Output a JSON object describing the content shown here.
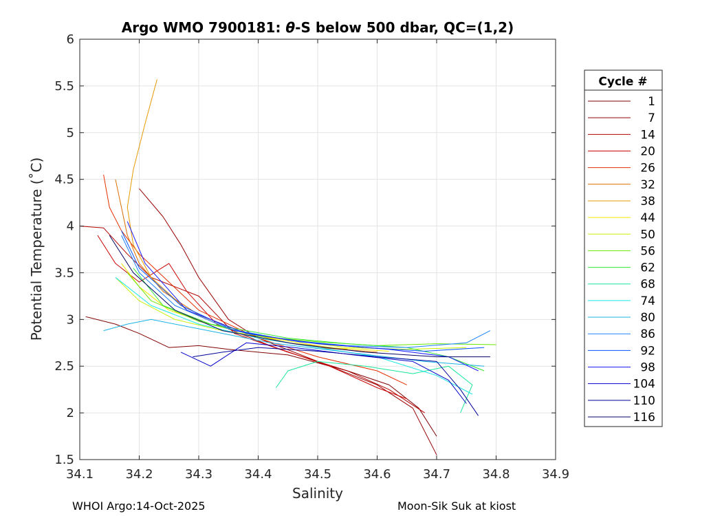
{
  "chart_data": {
    "type": "line",
    "title_prefix": "Argo WMO 7900181: ",
    "title_symbol": "θ",
    "title_suffix": "-S below 500 dbar,  QC=(1,2)",
    "xlabel": "Salinity",
    "ylabel": "Potential Temperature (˚C)",
    "xlim": [
      34.1,
      34.9
    ],
    "ylim": [
      1.5,
      6
    ],
    "xticks": [
      34.1,
      34.2,
      34.3,
      34.4,
      34.5,
      34.6,
      34.7,
      34.8,
      34.9
    ],
    "yticks": [
      1.5,
      2,
      2.5,
      3,
      3.5,
      4,
      4.5,
      5,
      5.5,
      6
    ],
    "xtick_labels": [
      "34.1",
      "34.2",
      "34.3",
      "34.4",
      "34.5",
      "34.6",
      "34.7",
      "34.8",
      "34.9"
    ],
    "ytick_labels": [
      "1.5",
      "2",
      "2.5",
      "3",
      "3.5",
      "4",
      "4.5",
      "5",
      "5.5",
      "6"
    ],
    "grid": true,
    "legend_title": "Cycle #",
    "legend_position": "outside-right",
    "series": [
      {
        "name": "1",
        "color": "#800000",
        "points": [
          [
            34.11,
            3.03
          ],
          [
            34.16,
            2.95
          ],
          [
            34.2,
            2.85
          ],
          [
            34.25,
            2.7
          ],
          [
            34.3,
            2.72
          ],
          [
            34.35,
            2.68
          ],
          [
            34.45,
            2.62
          ],
          [
            34.55,
            2.45
          ],
          [
            34.62,
            2.3
          ],
          [
            34.67,
            2.05
          ],
          [
            34.7,
            1.75
          ]
        ]
      },
      {
        "name": "7",
        "color": "#990000",
        "points": [
          [
            34.2,
            4.4
          ],
          [
            34.24,
            4.1
          ],
          [
            34.27,
            3.8
          ],
          [
            34.3,
            3.45
          ],
          [
            34.35,
            3.0
          ],
          [
            34.4,
            2.8
          ],
          [
            34.5,
            2.55
          ],
          [
            34.6,
            2.3
          ],
          [
            34.66,
            2.05
          ],
          [
            34.7,
            1.55
          ]
        ]
      },
      {
        "name": "14",
        "color": "#b30000",
        "points": [
          [
            34.1,
            4.0
          ],
          [
            34.14,
            3.98
          ],
          [
            34.18,
            3.7
          ],
          [
            34.22,
            3.45
          ],
          [
            34.3,
            3.25
          ],
          [
            34.36,
            2.85
          ],
          [
            34.45,
            2.65
          ],
          [
            34.55,
            2.45
          ],
          [
            34.62,
            2.25
          ],
          [
            34.68,
            2.0
          ]
        ]
      },
      {
        "name": "20",
        "color": "#cc0000",
        "points": [
          [
            34.13,
            3.9
          ],
          [
            34.16,
            3.6
          ],
          [
            34.2,
            3.4
          ],
          [
            34.25,
            3.6
          ],
          [
            34.28,
            3.3
          ],
          [
            34.33,
            2.95
          ],
          [
            34.42,
            2.72
          ],
          [
            34.52,
            2.5
          ],
          [
            34.6,
            2.27
          ],
          [
            34.65,
            2.15
          ]
        ]
      },
      {
        "name": "26",
        "color": "#e62e00",
        "points": [
          [
            34.14,
            4.55
          ],
          [
            34.15,
            4.2
          ],
          [
            34.17,
            3.95
          ],
          [
            34.2,
            3.7
          ],
          [
            34.25,
            3.4
          ],
          [
            34.3,
            3.1
          ],
          [
            34.4,
            2.8
          ],
          [
            34.5,
            2.6
          ],
          [
            34.6,
            2.45
          ],
          [
            34.65,
            2.3
          ]
        ]
      },
      {
        "name": "32",
        "color": "#d96c00",
        "points": [
          [
            34.16,
            4.5
          ],
          [
            34.17,
            4.2
          ],
          [
            34.18,
            3.9
          ],
          [
            34.2,
            3.6
          ],
          [
            34.24,
            3.3
          ],
          [
            34.3,
            3.05
          ],
          [
            34.4,
            2.8
          ],
          [
            34.5,
            2.7
          ],
          [
            34.6,
            2.65
          ]
        ]
      },
      {
        "name": "38",
        "color": "#e69900",
        "points": [
          [
            34.23,
            5.57
          ],
          [
            34.21,
            5.1
          ],
          [
            34.19,
            4.6
          ],
          [
            34.18,
            4.2
          ],
          [
            34.19,
            3.8
          ],
          [
            34.22,
            3.45
          ],
          [
            34.28,
            3.1
          ],
          [
            34.35,
            2.9
          ],
          [
            34.45,
            2.75
          ],
          [
            34.55,
            2.68
          ]
        ]
      },
      {
        "name": "44",
        "color": "#f2e600",
        "points": [
          [
            34.17,
            3.6
          ],
          [
            34.2,
            3.35
          ],
          [
            34.25,
            3.1
          ],
          [
            34.32,
            2.95
          ],
          [
            34.42,
            2.8
          ],
          [
            34.52,
            2.7
          ],
          [
            34.62,
            2.66
          ]
        ]
      },
      {
        "name": "50",
        "color": "#c8f000",
        "points": [
          [
            34.16,
            3.45
          ],
          [
            34.2,
            3.2
          ],
          [
            34.26,
            3.0
          ],
          [
            34.34,
            2.88
          ],
          [
            34.45,
            2.78
          ],
          [
            34.55,
            2.7
          ],
          [
            34.65,
            2.68
          ],
          [
            34.75,
            2.7
          ]
        ]
      },
      {
        "name": "56",
        "color": "#66e600",
        "points": [
          [
            34.18,
            3.5
          ],
          [
            34.22,
            3.2
          ],
          [
            34.3,
            2.98
          ],
          [
            34.4,
            2.82
          ],
          [
            34.5,
            2.76
          ],
          [
            34.6,
            2.72
          ],
          [
            34.7,
            2.74
          ],
          [
            34.8,
            2.73
          ]
        ]
      },
      {
        "name": "62",
        "color": "#33e633",
        "points": [
          [
            34.19,
            3.55
          ],
          [
            34.24,
            3.15
          ],
          [
            34.32,
            2.95
          ],
          [
            34.45,
            2.8
          ],
          [
            34.55,
            2.74
          ],
          [
            34.65,
            2.7
          ],
          [
            34.72,
            2.6
          ],
          [
            34.78,
            2.45
          ]
        ]
      },
      {
        "name": "68",
        "color": "#19e699",
        "points": [
          [
            34.43,
            2.27
          ],
          [
            34.45,
            2.45
          ],
          [
            34.5,
            2.55
          ],
          [
            34.58,
            2.5
          ],
          [
            34.66,
            2.42
          ],
          [
            34.72,
            2.5
          ],
          [
            34.76,
            2.3
          ],
          [
            34.74,
            2.0
          ]
        ]
      },
      {
        "name": "74",
        "color": "#19e6e6",
        "points": [
          [
            34.16,
            3.45
          ],
          [
            34.22,
            3.15
          ],
          [
            34.3,
            2.95
          ],
          [
            34.4,
            2.8
          ],
          [
            34.5,
            2.7
          ],
          [
            34.6,
            2.6
          ],
          [
            34.7,
            2.4
          ],
          [
            34.76,
            2.2
          ]
        ]
      },
      {
        "name": "80",
        "color": "#19b3e6",
        "points": [
          [
            34.14,
            2.88
          ],
          [
            34.18,
            2.95
          ],
          [
            34.22,
            3.0
          ],
          [
            34.3,
            2.9
          ],
          [
            34.42,
            2.75
          ],
          [
            34.55,
            2.65
          ],
          [
            34.68,
            2.55
          ],
          [
            34.78,
            2.5
          ]
        ]
      },
      {
        "name": "86",
        "color": "#1a80ff",
        "points": [
          [
            34.17,
            3.9
          ],
          [
            34.2,
            3.5
          ],
          [
            34.26,
            3.15
          ],
          [
            34.35,
            2.9
          ],
          [
            34.45,
            2.78
          ],
          [
            34.55,
            2.72
          ],
          [
            34.65,
            2.7
          ],
          [
            34.75,
            2.75
          ],
          [
            34.79,
            2.88
          ]
        ]
      },
      {
        "name": "92",
        "color": "#0050ff",
        "points": [
          [
            34.17,
            3.95
          ],
          [
            34.2,
            3.55
          ],
          [
            34.27,
            3.15
          ],
          [
            34.36,
            2.88
          ],
          [
            34.47,
            2.76
          ],
          [
            34.58,
            2.7
          ],
          [
            34.68,
            2.66
          ],
          [
            34.78,
            2.7
          ]
        ]
      },
      {
        "name": "98",
        "color": "#1a1aff",
        "points": [
          [
            34.18,
            4.05
          ],
          [
            34.21,
            3.6
          ],
          [
            34.28,
            3.1
          ],
          [
            34.38,
            2.85
          ],
          [
            34.5,
            2.74
          ],
          [
            34.62,
            2.68
          ],
          [
            34.72,
            2.6
          ],
          [
            34.77,
            2.45
          ]
        ]
      },
      {
        "name": "104",
        "color": "#0000cc",
        "points": [
          [
            34.27,
            2.65
          ],
          [
            34.32,
            2.5
          ],
          [
            34.38,
            2.75
          ],
          [
            34.46,
            2.7
          ],
          [
            34.56,
            2.62
          ],
          [
            34.66,
            2.55
          ],
          [
            34.72,
            2.35
          ],
          [
            34.75,
            2.1
          ]
        ]
      },
      {
        "name": "110",
        "color": "#000099",
        "points": [
          [
            34.29,
            2.6
          ],
          [
            34.34,
            2.65
          ],
          [
            34.4,
            2.7
          ],
          [
            34.5,
            2.66
          ],
          [
            34.6,
            2.6
          ],
          [
            34.7,
            2.55
          ],
          [
            34.74,
            2.25
          ],
          [
            34.77,
            1.97
          ]
        ]
      },
      {
        "name": "116",
        "color": "#000066",
        "points": [
          [
            34.15,
            3.9
          ],
          [
            34.19,
            3.5
          ],
          [
            34.26,
            3.1
          ],
          [
            34.34,
            2.88
          ],
          [
            34.46,
            2.74
          ],
          [
            34.58,
            2.65
          ],
          [
            34.7,
            2.6
          ],
          [
            34.79,
            2.6
          ]
        ]
      }
    ]
  },
  "footer": {
    "left": "WHOI Argo:14-Oct-2025",
    "right": "Moon-Sik Suk at kiost"
  }
}
